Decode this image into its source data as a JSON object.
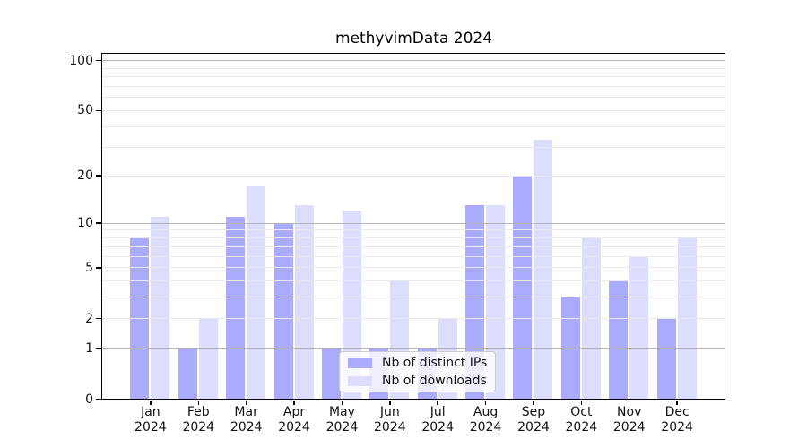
{
  "chart_data": {
    "type": "bar",
    "title": "methyvimData 2024",
    "categories": [
      "Jan",
      "Feb",
      "Mar",
      "Apr",
      "May",
      "Jun",
      "Jul",
      "Aug",
      "Sep",
      "Oct",
      "Nov",
      "Dec"
    ],
    "x_tick_year": "2024",
    "series": [
      {
        "name": "Nb of distinct IPs",
        "color": "#aaaaff",
        "values": [
          8,
          1,
          11,
          10,
          1,
          1,
          1,
          13,
          20,
          3,
          4,
          2
        ]
      },
      {
        "name": "Nb of downloads",
        "color": "#ddddff",
        "values": [
          11,
          2,
          17,
          13,
          12,
          4,
          2,
          13,
          33,
          8,
          6,
          8
        ]
      }
    ],
    "y_ticks": [
      0,
      1,
      2,
      5,
      10,
      20,
      50,
      100
    ],
    "y_scale": "log1p",
    "ylim": [
      0,
      115
    ],
    "grid": {
      "show": true,
      "major_at": [
        1,
        10,
        100
      ],
      "minor_at": [
        2,
        3,
        4,
        5,
        6,
        7,
        8,
        9,
        20,
        30,
        40,
        50,
        60,
        70,
        80,
        90
      ],
      "major_color": "#b3b3b3",
      "minor_color": "#e9e9e9"
    },
    "legend": {
      "position": "lower center",
      "entries": [
        "Nb of distinct IPs",
        "Nb of downloads"
      ]
    }
  }
}
